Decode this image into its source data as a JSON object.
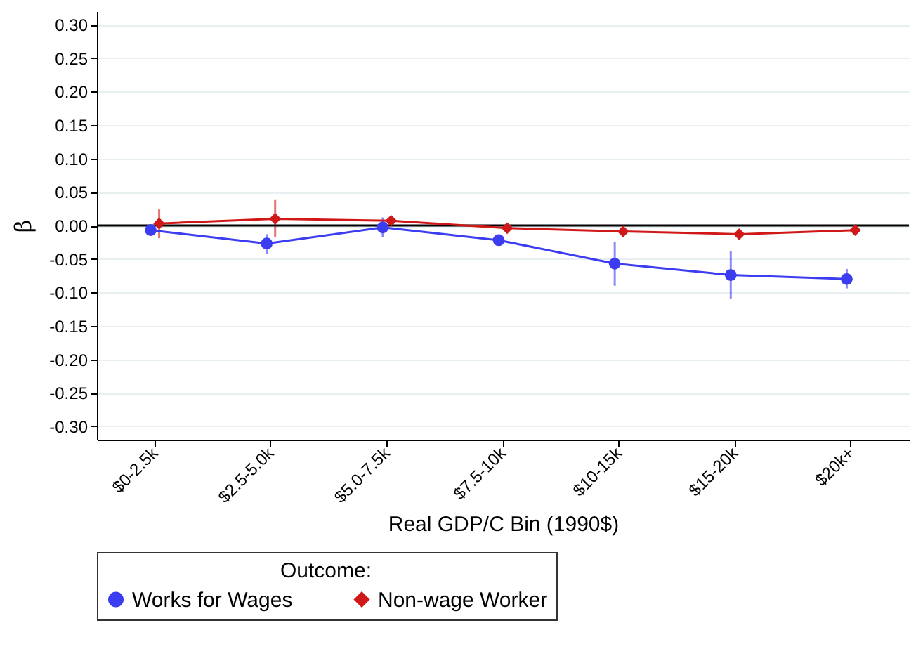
{
  "chart_data": {
    "type": "line",
    "xlabel": "Real GDP/C Bin (1990$)",
    "ylabel": "β",
    "legend_title": "Outcome:",
    "categories": [
      "$0-2.5k",
      "$2.5-5.0k",
      "$5.0-7.5k",
      "$7.5-10k",
      "$10-15k",
      "$15-20k",
      "$20k+"
    ],
    "ylim": [
      -0.32,
      0.32
    ],
    "yticks": [
      {
        "value": -0.3,
        "label": "-0.30"
      },
      {
        "value": -0.25,
        "label": "-0.25"
      },
      {
        "value": -0.2,
        "label": "-0.20"
      },
      {
        "value": -0.15,
        "label": "-0.15"
      },
      {
        "value": -0.1,
        "label": "-0.10"
      },
      {
        "value": -0.05,
        "label": "-0.05"
      },
      {
        "value": 0,
        "label": "0.00"
      },
      {
        "value": 0.05,
        "label": "0.05"
      },
      {
        "value": 0.1,
        "label": "0.10"
      },
      {
        "value": 0.15,
        "label": "0.15"
      },
      {
        "value": 0.2,
        "label": "0.20"
      },
      {
        "value": 0.25,
        "label": "0.25"
      },
      {
        "value": 0.3,
        "label": "0.30"
      }
    ],
    "grid": "y",
    "legend": "bottom",
    "line_style": "solid",
    "ref_lines": [
      {
        "axis": "y",
        "value": 0,
        "color": "#000000"
      }
    ],
    "series": [
      {
        "name": "Works for Wages",
        "color": "#3c3cf0",
        "marker": "circle",
        "values": [
          -0.007,
          -0.027,
          -0.003,
          -0.022,
          -0.057,
          -0.074,
          -0.08
        ],
        "errors": [
          [
            -0.012,
            -0.002
          ],
          [
            -0.042,
            -0.013
          ],
          [
            -0.017,
            0.012
          ],
          [
            -0.029,
            -0.015
          ],
          [
            -0.09,
            -0.024
          ],
          [
            -0.109,
            -0.038
          ],
          [
            -0.094,
            -0.065
          ]
        ]
      },
      {
        "name": "Non-wage Worker",
        "color": "#d01818",
        "marker": "diamond",
        "values": [
          0.003,
          0.01,
          0.007,
          -0.004,
          -0.009,
          -0.013,
          -0.007
        ],
        "errors": [
          [
            -0.019,
            0.024
          ],
          [
            -0.017,
            0.038
          ],
          [
            0.002,
            0.012
          ],
          [
            -0.007,
            -0.001
          ],
          [
            -0.012,
            -0.006
          ],
          [
            -0.016,
            -0.01
          ],
          [
            -0.01,
            -0.004
          ]
        ]
      }
    ]
  }
}
